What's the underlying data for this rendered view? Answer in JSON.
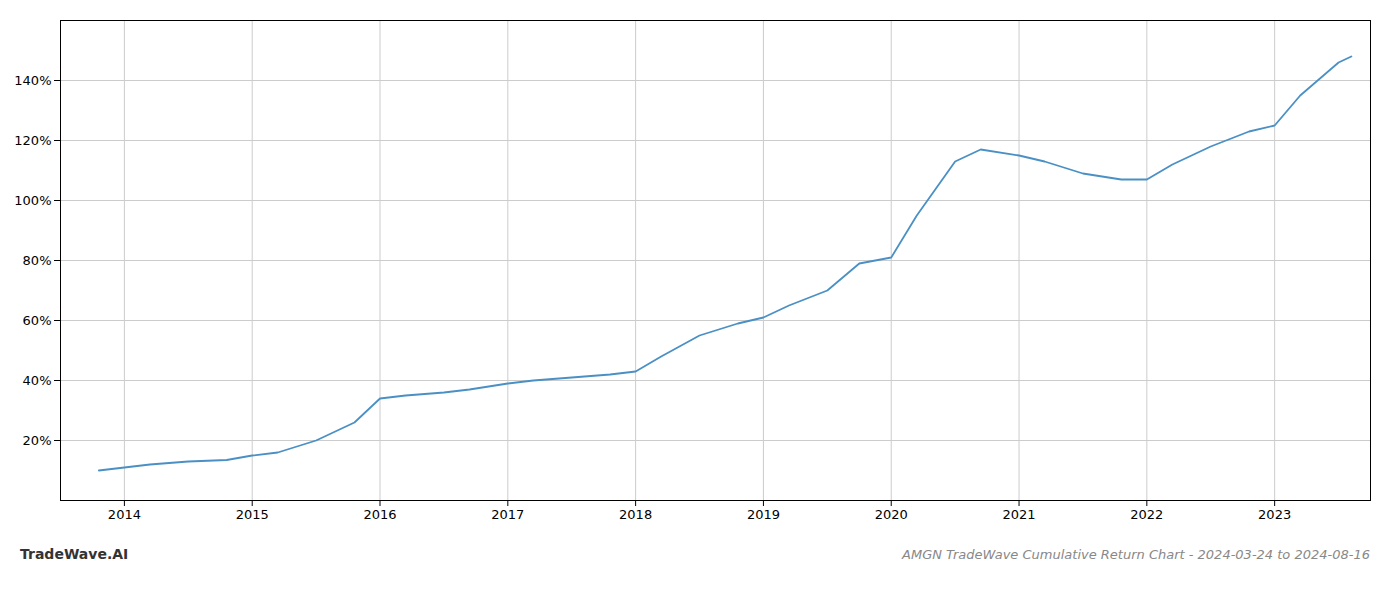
{
  "chart_data": {
    "type": "line",
    "title": "AMGN TradeWave Cumulative Return Chart - 2024-03-24 to 2024-08-16",
    "annotations": [
      {
        "text": "TradeWave.AI"
      }
    ],
    "x": [
      2013.8,
      2014.0,
      2014.2,
      2014.5,
      2014.8,
      2015.0,
      2015.2,
      2015.5,
      2015.8,
      2016.0,
      2016.2,
      2016.5,
      2016.7,
      2017.0,
      2017.2,
      2017.5,
      2017.8,
      2018.0,
      2018.2,
      2018.5,
      2018.8,
      2019.0,
      2019.2,
      2019.5,
      2019.75,
      2020.0,
      2020.2,
      2020.5,
      2020.7,
      2021.0,
      2021.2,
      2021.5,
      2021.8,
      2022.0,
      2022.2,
      2022.5,
      2022.8,
      2023.0,
      2023.2,
      2023.5,
      2023.6
    ],
    "values": [
      10,
      11,
      12,
      13,
      13.5,
      15,
      16,
      20,
      26,
      34,
      35,
      36,
      37,
      39,
      40,
      41,
      42,
      43,
      48,
      55,
      59,
      61,
      65,
      70,
      79,
      81,
      95,
      113,
      117,
      115,
      113,
      109,
      107,
      107,
      112,
      118,
      123,
      125,
      135,
      146,
      148
    ],
    "color": "#4a90c4",
    "xlim": [
      2013.5,
      2023.75
    ],
    "ylim": [
      0,
      160
    ],
    "xticks": [
      2014,
      2015,
      2016,
      2017,
      2018,
      2019,
      2020,
      2021,
      2022,
      2023
    ],
    "yticks": [
      {
        "value": 20,
        "label": "20%"
      },
      {
        "value": 40,
        "label": "40%"
      },
      {
        "value": 60,
        "label": "60%"
      },
      {
        "value": 80,
        "label": "80%"
      },
      {
        "value": 100,
        "label": "100%"
      },
      {
        "value": 120,
        "label": "120%"
      },
      {
        "value": 140,
        "label": "140%"
      }
    ],
    "grid": true
  }
}
